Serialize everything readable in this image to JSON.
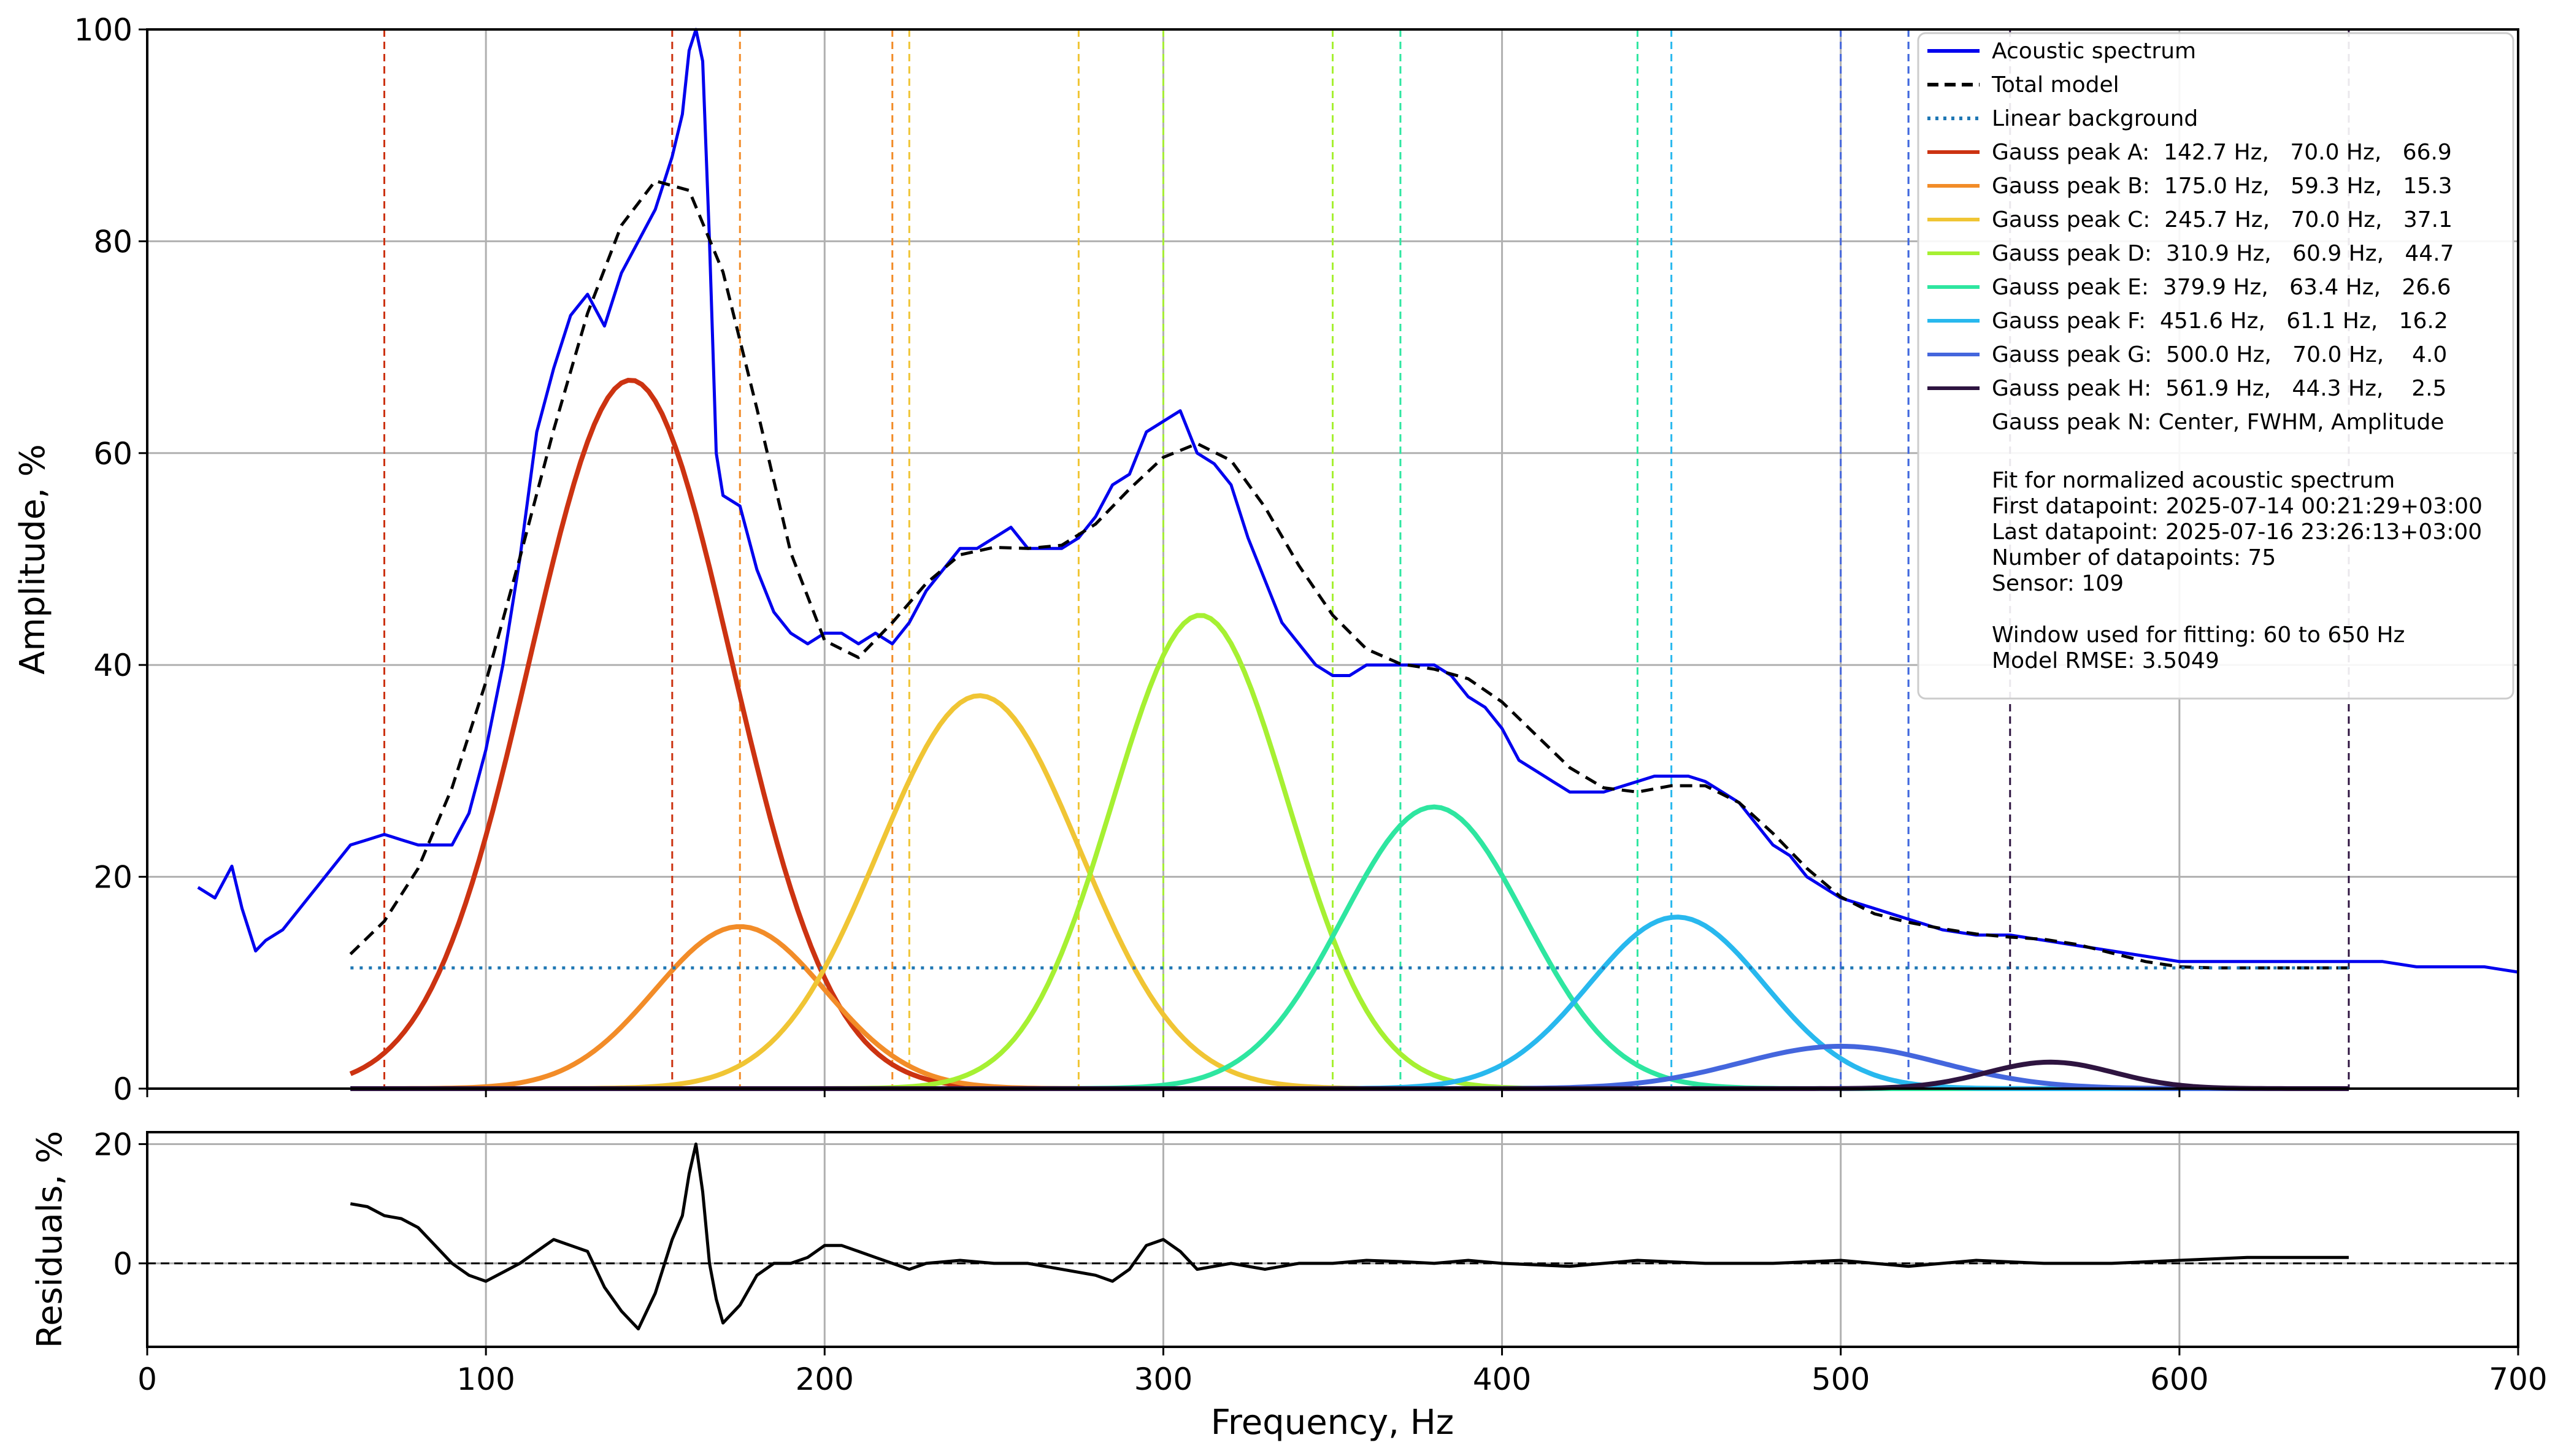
{
  "chart_data": [
    {
      "type": "line",
      "ylabel": "Amplitude, %",
      "xlim": [
        0,
        700
      ],
      "ylim": [
        0,
        100
      ],
      "xticks": [
        0,
        100,
        200,
        300,
        400,
        500,
        600,
        700
      ],
      "yticks": [
        0,
        20,
        40,
        60,
        80,
        100
      ],
      "grid": true,
      "legend_position": "top-right",
      "series": [
        {
          "name": "Acoustic spectrum",
          "color": "#0000ee",
          "x": [
            15,
            20,
            25,
            28,
            32,
            35,
            40,
            45,
            50,
            55,
            60,
            65,
            70,
            75,
            80,
            85,
            90,
            95,
            100,
            105,
            110,
            115,
            120,
            125,
            130,
            135,
            140,
            145,
            150,
            155,
            158,
            160,
            162,
            164,
            166,
            168,
            170,
            175,
            180,
            185,
            190,
            195,
            200,
            205,
            210,
            215,
            220,
            225,
            230,
            235,
            240,
            245,
            250,
            255,
            260,
            265,
            270,
            275,
            280,
            285,
            290,
            295,
            300,
            305,
            310,
            315,
            320,
            325,
            330,
            335,
            340,
            345,
            350,
            355,
            360,
            365,
            370,
            375,
            380,
            385,
            390,
            395,
            400,
            405,
            410,
            415,
            420,
            425,
            430,
            435,
            440,
            445,
            450,
            455,
            460,
            465,
            470,
            475,
            480,
            485,
            490,
            495,
            500,
            510,
            520,
            530,
            540,
            550,
            560,
            570,
            580,
            590,
            600,
            610,
            620,
            630,
            640,
            650,
            660,
            670,
            680,
            690,
            700
          ],
          "y": [
            19,
            18,
            21,
            17,
            13,
            14,
            15,
            17,
            19,
            21,
            23,
            23.5,
            24,
            23.5,
            23,
            23,
            23,
            26,
            32,
            40,
            50,
            62,
            68,
            73,
            75,
            72,
            77,
            80,
            83,
            88,
            92,
            98,
            100,
            97,
            80,
            60,
            56,
            55,
            49,
            45,
            43,
            42,
            43,
            43,
            42,
            43,
            42,
            44,
            47,
            49,
            51,
            51,
            52,
            53,
            51,
            51,
            51,
            52,
            54,
            57,
            58,
            62,
            63,
            64,
            60,
            59,
            57,
            52,
            48,
            44,
            42,
            40,
            39,
            39,
            40,
            40,
            40,
            40,
            40,
            39,
            37,
            36,
            34,
            31,
            30,
            29,
            28,
            28,
            28,
            28.5,
            29,
            29.5,
            29.5,
            29.5,
            29,
            28,
            27,
            25,
            23,
            22,
            20,
            19,
            18,
            17,
            16,
            15,
            14.5,
            14.5,
            14,
            13.5,
            13,
            12.5,
            12,
            12,
            12,
            12,
            12,
            12,
            12,
            11.5,
            11.5,
            11.5,
            11
          ]
        },
        {
          "name": "Total model",
          "color": "#000000",
          "style": "dashed",
          "x": [
            60,
            70,
            80,
            90,
            100,
            110,
            120,
            130,
            140,
            150,
            160,
            170,
            180,
            190,
            200,
            210,
            220,
            230,
            240,
            250,
            260,
            270,
            280,
            290,
            300,
            310,
            320,
            330,
            340,
            350,
            360,
            370,
            380,
            390,
            400,
            410,
            420,
            430,
            440,
            450,
            460,
            470,
            480,
            490,
            500,
            510,
            520,
            530,
            540,
            550,
            560,
            570,
            580,
            590,
            600,
            610,
            620,
            630,
            640,
            650
          ],
          "y": [
            12.7,
            15.8,
            20.8,
            28.4,
            38.4,
            50.1,
            62.2,
            73.2,
            81.5,
            85.7,
            84.8,
            77.1,
            64.2,
            50.6,
            42.3,
            40.7,
            44,
            47.7,
            50.4,
            51.1,
            51,
            51.3,
            53.3,
            56.6,
            59.6,
            60.9,
            59.3,
            54.9,
            49.4,
            44.7,
            41.5,
            40.1,
            39.6,
            38.7,
            36.5,
            33.4,
            30.3,
            28.4,
            28,
            28.6,
            28.6,
            27,
            24.1,
            20.8,
            18.1,
            16.5,
            15.7,
            15.1,
            14.6,
            14.3,
            14.1,
            13.6,
            12.8,
            12,
            11.5,
            11.4,
            11.4,
            11.4,
            11.4,
            11.4
          ]
        },
        {
          "name": "Linear background",
          "color": "#1f77b4",
          "style": "dotted",
          "x": [
            60,
            650
          ],
          "y": [
            11.4,
            11.4
          ]
        }
      ],
      "gauss_peaks": [
        {
          "name": "Gauss peak A:  142.7 Hz,   70.0 Hz,   66.9",
          "center": 142.7,
          "fwhm": 70.0,
          "amplitude": 66.9,
          "color": "#cc3311",
          "window": [
            70,
            155
          ]
        },
        {
          "name": "Gauss peak B:  175.0 Hz,   59.3 Hz,   15.3",
          "center": 175.0,
          "fwhm": 59.3,
          "amplitude": 15.3,
          "color": "#f28c28",
          "window": [
            175,
            220
          ]
        },
        {
          "name": "Gauss peak C:  245.7 Hz,   70.0 Hz,   37.1",
          "center": 245.7,
          "fwhm": 70.0,
          "amplitude": 37.1,
          "color": "#f0c534",
          "window": [
            225,
            275
          ]
        },
        {
          "name": "Gauss peak D:  310.9 Hz,   60.9 Hz,   44.7",
          "center": 310.9,
          "fwhm": 60.9,
          "amplitude": 44.7,
          "color": "#a6f032",
          "window": [
            300,
            350
          ]
        },
        {
          "name": "Gauss peak E:  379.9 Hz,   63.4 Hz,   26.6",
          "center": 379.9,
          "fwhm": 63.4,
          "amplitude": 26.6,
          "color": "#2ee6a0",
          "window": [
            370,
            440
          ]
        },
        {
          "name": "Gauss peak F:  451.6 Hz,   61.1 Hz,   16.2",
          "center": 451.6,
          "fwhm": 61.1,
          "amplitude": 16.2,
          "color": "#28b8ee",
          "window": [
            450,
            520
          ]
        },
        {
          "name": "Gauss peak G:  500.0 Hz,   70.0 Hz,    4.0",
          "center": 500.0,
          "fwhm": 70.0,
          "amplitude": 4.0,
          "color": "#4466dd",
          "window": [
            500,
            520
          ]
        },
        {
          "name": "Gauss peak H:  561.9 Hz,   44.3 Hz,    2.5",
          "center": 561.9,
          "fwhm": 44.3,
          "amplitude": 2.5,
          "color": "#2e1440",
          "window": [
            550,
            650
          ]
        }
      ],
      "legend_note": "Gauss peak N: Center, FWHM, Amplitude",
      "annotation_lines": [
        "Fit for normalized acoustic spectrum",
        "First datapoint: 2025-07-14 00:21:29+03:00",
        "Last datapoint: 2025-07-16 23:26:13+03:00",
        "Number of datapoints: 75",
        "Sensor: 109",
        "",
        "Window used for fitting: 60 to 650 Hz",
        "Model RMSE: 3.5049"
      ]
    },
    {
      "type": "line",
      "xlabel": "Frequency, Hz",
      "ylabel": "Residuals, %",
      "xlim": [
        0,
        700
      ],
      "ylim": [
        -14,
        22
      ],
      "xticks": [
        0,
        100,
        200,
        300,
        400,
        500,
        600,
        700
      ],
      "yticks": [
        0,
        20
      ],
      "grid": true,
      "series": [
        {
          "name": "Residuals",
          "color": "#000000",
          "x": [
            60,
            65,
            70,
            75,
            80,
            85,
            90,
            95,
            100,
            105,
            110,
            115,
            120,
            125,
            130,
            135,
            140,
            145,
            150,
            155,
            158,
            160,
            162,
            164,
            166,
            168,
            170,
            175,
            180,
            185,
            190,
            195,
            200,
            205,
            210,
            215,
            220,
            225,
            230,
            240,
            250,
            260,
            270,
            280,
            285,
            290,
            295,
            300,
            305,
            310,
            320,
            330,
            340,
            350,
            360,
            370,
            380,
            390,
            400,
            420,
            440,
            460,
            480,
            500,
            520,
            540,
            560,
            580,
            600,
            620,
            640,
            650
          ],
          "y": [
            10,
            9.5,
            8,
            7.5,
            6,
            3,
            0,
            -2,
            -3,
            -1.5,
            0,
            2,
            4,
            3,
            2,
            -4,
            -8,
            -11,
            -5,
            4,
            8,
            15,
            20,
            12,
            0,
            -6,
            -10,
            -7,
            -2,
            0,
            0,
            1,
            3,
            3,
            2,
            1,
            0,
            -1,
            0,
            0.5,
            0,
            0,
            -1,
            -2,
            -3,
            -1,
            3,
            4,
            2,
            -1,
            0,
            -1,
            0,
            0,
            0.5,
            0.3,
            0,
            0.5,
            0,
            -0.5,
            0.5,
            0,
            0,
            0.5,
            -0.5,
            0.5,
            0,
            0,
            0.5,
            1,
            1,
            1
          ]
        },
        {
          "name": "Zero line",
          "color": "#000000",
          "style": "dashed",
          "x": [
            0,
            700
          ],
          "y": [
            0,
            0
          ]
        }
      ]
    }
  ]
}
